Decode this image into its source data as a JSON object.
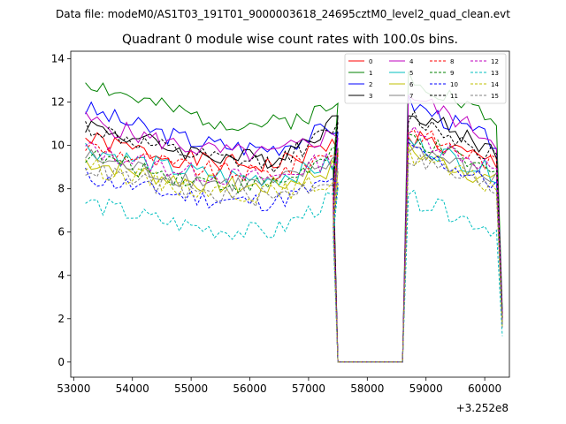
{
  "header": {
    "suptitle": "Data file: modeM0/AS1T03_191T01_9000003618_24695cztM0_level2_quad_clean.evt"
  },
  "chart_data": {
    "type": "line",
    "title": "Quadrant 0 module wise count rates with 100.0s bins.",
    "xlabel": "",
    "ylabel": "",
    "x_offset_label": "+3.252e8",
    "xlim": [
      52950,
      60420
    ],
    "ylim": [
      -0.7,
      14.35
    ],
    "x_ticks": [
      53000,
      54000,
      55000,
      56000,
      57000,
      58000,
      59000,
      60000
    ],
    "x_tick_labels": [
      "53000",
      "54000",
      "55000",
      "56000",
      "57000",
      "58000",
      "59000",
      "60000"
    ],
    "y_ticks": [
      0,
      2,
      4,
      6,
      8,
      10,
      12,
      14
    ],
    "y_tick_labels": [
      "0",
      "2",
      "4",
      "6",
      "8",
      "10",
      "12",
      "14"
    ],
    "segment1": {
      "x_start": 53200,
      "step": 100,
      "count": 44
    },
    "drop": {
      "zero_start": 57500,
      "zero_end": 58600
    },
    "segment2": {
      "x_start": 58700,
      "step": 100,
      "count": 16,
      "tail_x": 60300
    },
    "grid": false,
    "legend_position": "upper-right",
    "series": [
      {
        "name": "0",
        "color": "#ff0000",
        "dash": "solid",
        "base1": 10.3,
        "tilt1": -1.2,
        "end1": 10.1,
        "base2": 10.5,
        "tilt2": -1.4,
        "tail": 1.9,
        "seed": 1
      },
      {
        "name": "1",
        "color": "#008000",
        "dash": "solid",
        "base1": 13.0,
        "tilt1": -2.0,
        "end1": 11.8,
        "base2": 13.3,
        "tilt2": -2.2,
        "tail": 2.4,
        "seed": 2
      },
      {
        "name": "2",
        "color": "#0000ff",
        "dash": "solid",
        "base1": 11.7,
        "tilt1": -1.8,
        "end1": 10.9,
        "base2": 12.0,
        "tilt2": -1.9,
        "tail": 2.2,
        "seed": 3
      },
      {
        "name": "3",
        "color": "#000000",
        "dash": "solid",
        "base1": 11.0,
        "tilt1": -1.6,
        "end1": 11.2,
        "base2": 11.7,
        "tilt2": -2.0,
        "tail": 2.0,
        "seed": 4
      },
      {
        "name": "4",
        "color": "#bf00bf",
        "dash": "solid",
        "base1": 11.2,
        "tilt1": -1.6,
        "end1": 10.6,
        "base2": 12.4,
        "tilt2": -2.2,
        "tail": 2.1,
        "seed": 5
      },
      {
        "name": "5",
        "color": "#00bfbf",
        "dash": "solid",
        "base1": 9.9,
        "tilt1": -1.4,
        "end1": 9.2,
        "base2": 10.2,
        "tilt2": -1.5,
        "tail": 1.8,
        "seed": 6
      },
      {
        "name": "6",
        "color": "#bfbf00",
        "dash": "solid",
        "base1": 9.3,
        "tilt1": -1.2,
        "end1": 9.0,
        "base2": 9.8,
        "tilt2": -1.5,
        "tail": 1.7,
        "seed": 7
      },
      {
        "name": "7",
        "color": "#808080",
        "dash": "solid",
        "base1": 9.5,
        "tilt1": -1.3,
        "end1": 9.4,
        "base2": 10.0,
        "tilt2": -1.6,
        "tail": 1.8,
        "seed": 8
      },
      {
        "name": "8",
        "color": "#ff0000",
        "dash": "dashed",
        "base1": 10.0,
        "tilt1": -1.3,
        "end1": 9.8,
        "base2": 10.7,
        "tilt2": -1.6,
        "tail": 1.9,
        "seed": 9
      },
      {
        "name": "9",
        "color": "#008000",
        "dash": "dashed",
        "base1": 9.6,
        "tilt1": -1.4,
        "end1": 9.6,
        "base2": 10.4,
        "tilt2": -1.8,
        "tail": 1.8,
        "seed": 10
      },
      {
        "name": "10",
        "color": "#0000ff",
        "dash": "dashed",
        "base1": 8.6,
        "tilt1": -1.2,
        "end1": 8.4,
        "base2": 9.8,
        "tilt2": -1.6,
        "tail": 1.6,
        "seed": 11
      },
      {
        "name": "11",
        "color": "#000000",
        "dash": "dashed",
        "base1": 10.9,
        "tilt1": -1.7,
        "end1": 10.8,
        "base2": 11.4,
        "tilt2": -1.9,
        "tail": 2.0,
        "seed": 12
      },
      {
        "name": "12",
        "color": "#bf00bf",
        "dash": "dashed",
        "base1": 9.9,
        "tilt1": -1.4,
        "end1": 9.5,
        "base2": 10.6,
        "tilt2": -1.7,
        "tail": 1.8,
        "seed": 13
      },
      {
        "name": "13",
        "color": "#00bfbf",
        "dash": "dashed",
        "base1": 7.4,
        "tilt1": -1.4,
        "end1": 7.7,
        "base2": 7.6,
        "tilt2": -1.5,
        "tail": 1.2,
        "seed": 14
      },
      {
        "name": "14",
        "color": "#bfbf00",
        "dash": "dashed",
        "base1": 9.1,
        "tilt1": -1.3,
        "end1": 8.4,
        "base2": 9.6,
        "tilt2": -1.6,
        "tail": 1.6,
        "seed": 15
      },
      {
        "name": "15",
        "color": "#808080",
        "dash": "dashed",
        "base1": 9.0,
        "tilt1": -1.4,
        "end1": 8.6,
        "base2": 9.5,
        "tilt2": -1.6,
        "tail": 1.6,
        "seed": 16
      }
    ]
  }
}
